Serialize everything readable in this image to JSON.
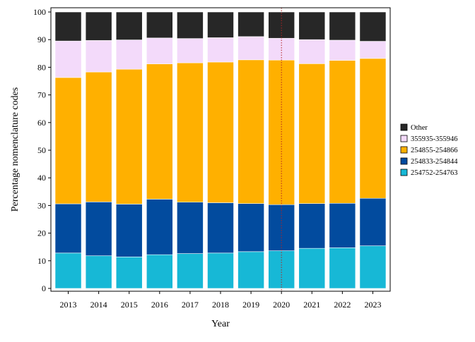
{
  "chart_data": {
    "type": "bar",
    "stacked": true,
    "xlabel": "Year",
    "ylabel": "Percentage nomenclature codes",
    "ylim": [
      0,
      100
    ],
    "yticks": [
      0,
      10,
      20,
      30,
      40,
      50,
      60,
      70,
      80,
      90,
      100
    ],
    "grid": false,
    "legend_position": "right",
    "reference_line": {
      "x": "2020",
      "style": "dotted",
      "color": "#b22222"
    },
    "categories": [
      "2013",
      "2014",
      "2015",
      "2016",
      "2017",
      "2018",
      "2019",
      "2020",
      "2021",
      "2022",
      "2023"
    ],
    "series": [
      {
        "name": "254752-254763",
        "color": "#17b8d6",
        "values": [
          12.8,
          11.8,
          11.4,
          12.2,
          12.6,
          12.8,
          13.3,
          13.6,
          14.5,
          14.7,
          15.4
        ]
      },
      {
        "name": "254833-254844",
        "color": "#024b9e",
        "values": [
          17.8,
          19.5,
          19.1,
          20.1,
          18.6,
          18.2,
          17.4,
          16.7,
          16.2,
          16.1,
          17.2
        ]
      },
      {
        "name": "254855-254866",
        "color": "#ffb000",
        "values": [
          45.7,
          47.0,
          48.8,
          48.9,
          50.4,
          50.9,
          52.0,
          52.3,
          50.6,
          51.7,
          50.6
        ]
      },
      {
        "name": "355935-355946",
        "color": "#f3dafa",
        "values": [
          13.2,
          11.4,
          10.6,
          9.4,
          8.8,
          8.8,
          8.4,
          7.9,
          8.7,
          7.3,
          6.2
        ]
      },
      {
        "name": "Other",
        "color": "#272727",
        "values": [
          10.5,
          10.3,
          10.1,
          9.4,
          9.6,
          9.3,
          8.9,
          9.5,
          10.0,
          10.2,
          10.6
        ]
      }
    ],
    "legend_order": [
      "Other",
      "355935-355946",
      "254855-254866",
      "254833-254844",
      "254752-254763"
    ]
  }
}
